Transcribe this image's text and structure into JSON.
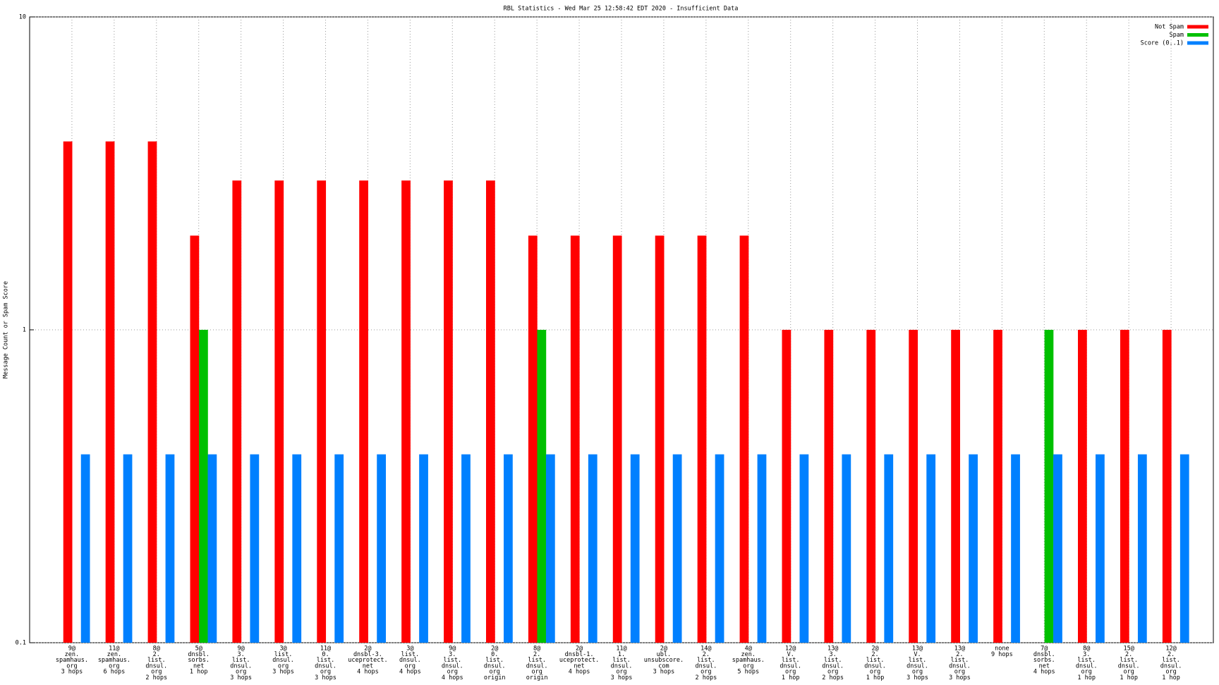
{
  "chart_data": {
    "type": "bar",
    "title": "RBL Statistics - Wed Mar 25 12:58:42 EDT 2020 - Insufficient Data",
    "y_label": "Message Count or Spam Score",
    "categories": [
      [
        "9@",
        "zen.",
        "spamhaus.",
        "org",
        "3 hops"
      ],
      [
        "11@",
        "zen.",
        "spamhaus.",
        "org",
        "6 hops"
      ],
      [
        "8@",
        "2.",
        "list.",
        "dnsul.",
        "org",
        "2 hops"
      ],
      [
        "5@",
        "dnsbl.",
        "sorbs.",
        "net",
        "1 hop"
      ],
      [
        "9@",
        "3.",
        "list.",
        "dnsul.",
        "org",
        "3 hops"
      ],
      [
        "3@",
        "list.",
        "dnsul.",
        "org",
        "3 hops"
      ],
      [
        "11@",
        "0.",
        "list.",
        "dnsul.",
        "org",
        "3 hops"
      ],
      [
        "2@",
        "dnsbl-3.",
        "uceprotect.",
        "net",
        "4 hops"
      ],
      [
        "3@",
        "list.",
        "dnsul.",
        "org",
        "4 hops"
      ],
      [
        "9@",
        "3.",
        "list.",
        "dnsul.",
        "org",
        "4 hops"
      ],
      [
        "2@",
        "0.",
        "list.",
        "dnsul.",
        "org",
        "origin"
      ],
      [
        "8@",
        "2.",
        "list.",
        "dnsul.",
        "org",
        "origin"
      ],
      [
        "2@",
        "dnsbl-1.",
        "uceprotect.",
        "net",
        "4 hops"
      ],
      [
        "11@",
        "1.",
        "list.",
        "dnsul.",
        "org",
        "3 hops"
      ],
      [
        "2@",
        "ubl.",
        "unsubscore.",
        "com",
        "3 hops"
      ],
      [
        "14@",
        "2.",
        "list.",
        "dnsul.",
        "org",
        "2 hops"
      ],
      [
        "4@",
        "zen.",
        "spamhaus.",
        "org",
        "5 hops"
      ],
      [
        "12@",
        "V.",
        "list.",
        "dnsul.",
        "org",
        "1 hop"
      ],
      [
        "13@",
        "3.",
        "list.",
        "dnsul.",
        "org",
        "2 hops"
      ],
      [
        "2@",
        "2.",
        "list.",
        "dnsul.",
        "org",
        "1 hop"
      ],
      [
        "13@",
        "V.",
        "list.",
        "dnsul.",
        "org",
        "3 hops"
      ],
      [
        "13@",
        "2.",
        "list.",
        "dnsul.",
        "org",
        "3 hops"
      ],
      [
        "none",
        "9 hops"
      ],
      [
        "7@",
        "dnsbl.",
        "sorbs.",
        "net",
        "4 hops"
      ],
      [
        "8@",
        "3.",
        "list.",
        "dnsul.",
        "org",
        "1 hop"
      ],
      [
        "15@",
        "2.",
        "list.",
        "dnsul.",
        "org",
        "1 hop"
      ],
      [
        "12@",
        "2.",
        "list.",
        "dnsul.",
        "org",
        "1 hop"
      ]
    ],
    "series": [
      {
        "name": "Not Spam",
        "color": "#ff0000",
        "values": [
          4,
          4,
          4,
          2,
          3,
          3,
          3,
          3,
          3,
          3,
          3,
          2,
          2,
          2,
          2,
          2,
          2,
          1,
          1,
          1,
          1,
          1,
          1,
          null,
          1,
          1,
          1
        ]
      },
      {
        "name": "Spam",
        "color": "#00c000",
        "values": [
          null,
          null,
          null,
          1,
          null,
          null,
          null,
          null,
          null,
          null,
          null,
          1,
          null,
          null,
          null,
          null,
          null,
          null,
          null,
          null,
          null,
          null,
          null,
          1,
          null,
          null,
          null
        ]
      },
      {
        "name": "Score (0..1)",
        "color": "#0080ff",
        "values": [
          0.4,
          0.4,
          0.4,
          0.4,
          0.4,
          0.4,
          0.4,
          0.4,
          0.4,
          0.4,
          0.4,
          0.4,
          0.4,
          0.4,
          0.4,
          0.4,
          0.4,
          0.4,
          0.4,
          0.4,
          0.4,
          0.4,
          0.4,
          0.4,
          0.4,
          0.4,
          0.4
        ]
      }
    ],
    "ylim": [
      0.1,
      10
    ],
    "yticks": [
      0.1,
      1,
      10
    ],
    "ylog": true,
    "grid": true,
    "legend": "top-right"
  }
}
